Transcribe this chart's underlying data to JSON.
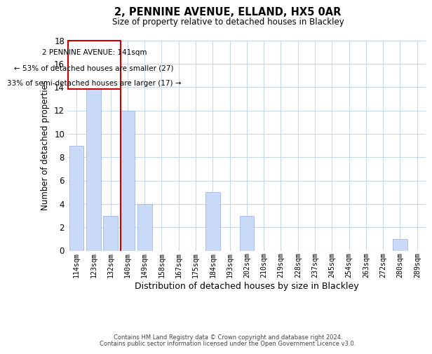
{
  "title": "2, PENNINE AVENUE, ELLAND, HX5 0AR",
  "subtitle": "Size of property relative to detached houses in Blackley",
  "xlabel": "Distribution of detached houses by size in Blackley",
  "ylabel": "Number of detached properties",
  "footer_line1": "Contains HM Land Registry data © Crown copyright and database right 2024.",
  "footer_line2": "Contains public sector information licensed under the Open Government Licence v3.0.",
  "annotation_title": "2 PENNINE AVENUE: 141sqm",
  "annotation_line1": "← 53% of detached houses are smaller (27)",
  "annotation_line2": "33% of semi-detached houses are larger (17) →",
  "bar_labels": [
    "114sqm",
    "123sqm",
    "132sqm",
    "140sqm",
    "149sqm",
    "158sqm",
    "167sqm",
    "175sqm",
    "184sqm",
    "193sqm",
    "202sqm",
    "210sqm",
    "219sqm",
    "228sqm",
    "237sqm",
    "245sqm",
    "254sqm",
    "263sqm",
    "272sqm",
    "280sqm",
    "289sqm"
  ],
  "bar_values": [
    9,
    15,
    3,
    12,
    4,
    0,
    0,
    0,
    5,
    0,
    3,
    0,
    0,
    0,
    0,
    0,
    0,
    0,
    0,
    1,
    0
  ],
  "highlight_index": 3,
  "bar_color": "#c9daf8",
  "bar_edge_color": "#a0b8e8",
  "vline_color": "#cc0000",
  "ylim": [
    0,
    18
  ],
  "yticks": [
    0,
    2,
    4,
    6,
    8,
    10,
    12,
    14,
    16,
    18
  ],
  "annotation_box_color": "#ffffff",
  "annotation_box_edge": "#cc0000",
  "bg_color": "#ffffff",
  "grid_color": "#c8d8e8"
}
